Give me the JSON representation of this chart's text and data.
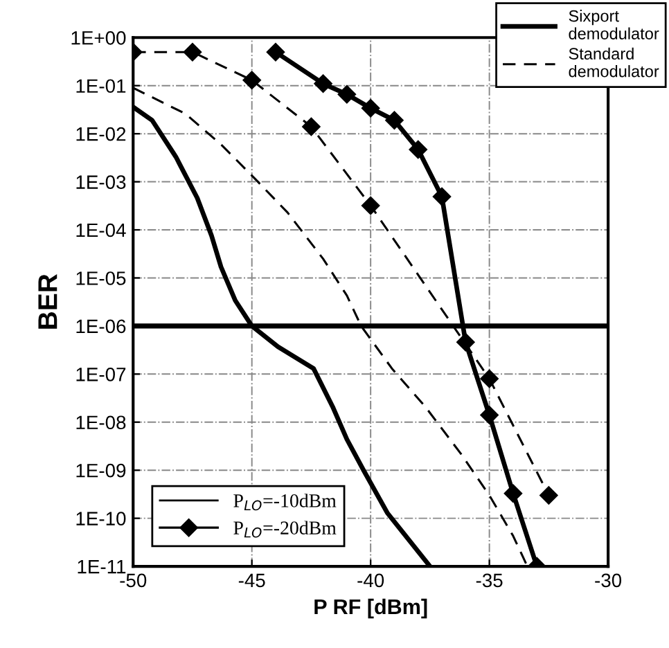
{
  "chart_data": {
    "type": "line",
    "xlabel": "P RF [dBm]",
    "ylabel": "BER",
    "log": "y",
    "xlim": [
      -50,
      -30
    ],
    "xticks": [
      -50,
      -45,
      -40,
      -35,
      -30
    ],
    "ylim": [
      1e-11,
      1
    ],
    "yticks": [
      {
        "value": 1,
        "label": "1E+00"
      },
      {
        "value": 0.1,
        "label": "1E-01"
      },
      {
        "value": 0.01,
        "label": "1E-02"
      },
      {
        "value": 0.001,
        "label": "1E-03"
      },
      {
        "value": 0.0001,
        "label": "1E-04"
      },
      {
        "value": 1e-05,
        "label": "1E-05"
      },
      {
        "value": 1e-06,
        "label": "1E-06"
      },
      {
        "value": 1e-07,
        "label": "1E-07"
      },
      {
        "value": 1e-08,
        "label": "1E-08"
      },
      {
        "value": 1e-09,
        "label": "1E-09"
      },
      {
        "value": 1e-10,
        "label": "1E-10"
      },
      {
        "value": 1e-11,
        "label": "1E-11"
      }
    ],
    "grid": true,
    "legend": "top right",
    "series": [
      {
        "name": "Sixport\ndemodulator",
        "color": "#000000",
        "line_style": "solid",
        "marker": "none",
        "x": [
          -50,
          -49.2,
          -48.2,
          -47.3,
          -46.7,
          -46.3,
          -45.7,
          -45,
          -43.9,
          -42.4,
          -41.6,
          -41,
          -40.3,
          -39.3,
          -37.5
        ],
        "values": [
          0.036,
          0.019,
          0.0033,
          0.00046,
          7.6e-05,
          1.7e-05,
          3.4e-06,
          1e-06,
          3.7e-07,
          1.3e-07,
          2.1e-08,
          4.4e-09,
          1e-09,
          1.3e-10,
          1e-11
        ]
      },
      {
        "name": "Standard\ndemodulator",
        "color": "#000000",
        "line_style": "dashed",
        "marker": "none",
        "x": [
          -50,
          -47.8,
          -46.3,
          -44.9,
          -43.5,
          -42,
          -41,
          -40.4,
          -39.1,
          -37.7,
          -36.2,
          -35,
          -34,
          -33.4
        ],
        "values": [
          0.09,
          0.026,
          0.006,
          0.0012,
          0.00023,
          2.5e-05,
          4.3e-06,
          1e-06,
          1.3e-07,
          2.1e-08,
          2.2e-09,
          3e-10,
          4.3e-11,
          1e-11
        ]
      },
      {
        "name": "P$_{LO}$=-20dBm",
        "color": "#000000",
        "line_style": "solid",
        "marker": "diamond",
        "x": [
          -44,
          -42,
          -41,
          -40,
          -39,
          -38,
          -37,
          -36,
          -35,
          -34,
          -33
        ],
        "values": [
          0.5,
          0.11,
          0.066,
          0.034,
          0.019,
          0.0047,
          0.00049,
          4.6e-07,
          1.4e-08,
          3.3e-10,
          1e-11
        ]
      },
      {
        "color": "#000000",
        "line_style": "dashed",
        "marker": "diamond",
        "x": [
          -50,
          -47.5,
          -45,
          -42.5,
          -40,
          -35,
          -32.5
        ],
        "values": [
          0.5,
          0.5,
          0.13,
          0.014,
          0.00032,
          8e-08,
          3e-10
        ]
      }
    ],
    "ref_lines": [
      {
        "axis": "y",
        "value": 1e-06,
        "color": "#000000",
        "line_style": "solid"
      }
    ],
    "annotations": [
      "P$_{LO}$=-10dBm"
    ]
  }
}
